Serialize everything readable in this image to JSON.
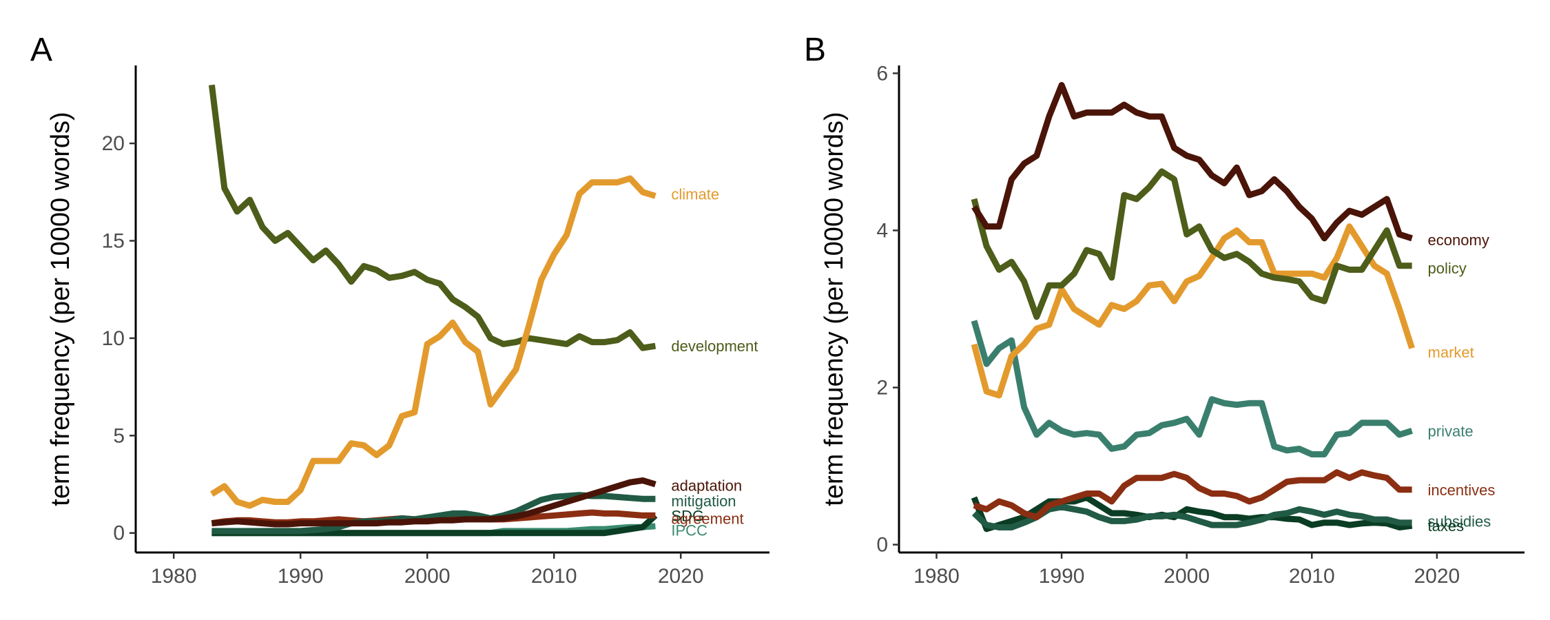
{
  "chart_data": [
    {
      "panel": "A",
      "type": "line",
      "xlabel": "",
      "ylabel": "term frequency (per 10000 words)",
      "xlim": [
        1977,
        2027
      ],
      "ylim": [
        -1,
        24
      ],
      "xticks": [
        1980,
        1990,
        2000,
        2010,
        2020
      ],
      "yticks": [
        0,
        5,
        10,
        15,
        20
      ],
      "x": [
        1983,
        1984,
        1985,
        1986,
        1987,
        1988,
        1989,
        1990,
        1991,
        1992,
        1993,
        1994,
        1995,
        1996,
        1997,
        1998,
        1999,
        2000,
        2001,
        2002,
        2003,
        2004,
        2005,
        2006,
        2007,
        2008,
        2009,
        2010,
        2011,
        2012,
        2013,
        2014,
        2015,
        2016,
        2017,
        2018
      ],
      "series": [
        {
          "name": "IPCC",
          "color": "#3a8a6e",
          "values": [
            0,
            0,
            0,
            0,
            0,
            0,
            0,
            0,
            0,
            0,
            0,
            0,
            0,
            0,
            0,
            0,
            0,
            0,
            0,
            0,
            0,
            0,
            0,
            0.1,
            0.1,
            0.1,
            0.1,
            0.1,
            0.1,
            0.15,
            0.2,
            0.2,
            0.25,
            0.3,
            0.3,
            0.35
          ]
        },
        {
          "name": "SDG",
          "color": "#0b3d24",
          "values": [
            0,
            0,
            0,
            0,
            0,
            0,
            0,
            0,
            0,
            0,
            0,
            0,
            0,
            0,
            0,
            0,
            0,
            0,
            0,
            0,
            0,
            0,
            0,
            0,
            0,
            0,
            0,
            0,
            0,
            0,
            0,
            0,
            0.1,
            0.2,
            0.3,
            0.9
          ]
        },
        {
          "name": "agreement",
          "color": "#8b2e12",
          "values": [
            0.5,
            0.6,
            0.65,
            0.65,
            0.6,
            0.55,
            0.55,
            0.6,
            0.6,
            0.65,
            0.7,
            0.65,
            0.6,
            0.65,
            0.7,
            0.75,
            0.7,
            0.8,
            0.85,
            0.8,
            0.8,
            0.75,
            0.7,
            0.7,
            0.75,
            0.8,
            0.85,
            0.9,
            0.95,
            1.0,
            1.05,
            1.0,
            1.0,
            0.95,
            0.9,
            0.9
          ]
        },
        {
          "name": "mitigation",
          "color": "#215a45",
          "values": [
            0.1,
            0.1,
            0.1,
            0.1,
            0.1,
            0.1,
            0.1,
            0.1,
            0.15,
            0.2,
            0.3,
            0.5,
            0.6,
            0.6,
            0.65,
            0.75,
            0.7,
            0.8,
            0.9,
            1.0,
            1.0,
            0.9,
            0.75,
            0.9,
            1.1,
            1.4,
            1.7,
            1.85,
            1.9,
            1.95,
            1.9,
            1.9,
            1.85,
            1.8,
            1.75,
            1.75
          ]
        },
        {
          "name": "adaptation",
          "color": "#4a1408",
          "values": [
            0.5,
            0.55,
            0.6,
            0.55,
            0.5,
            0.45,
            0.45,
            0.5,
            0.5,
            0.5,
            0.5,
            0.5,
            0.5,
            0.5,
            0.55,
            0.55,
            0.6,
            0.6,
            0.65,
            0.65,
            0.7,
            0.7,
            0.7,
            0.75,
            0.85,
            1.0,
            1.2,
            1.4,
            1.6,
            1.8,
            2.0,
            2.2,
            2.4,
            2.6,
            2.7,
            2.5
          ]
        },
        {
          "name": "development",
          "color": "#4d5d1a",
          "values": [
            23,
            17.7,
            16.5,
            17.1,
            15.7,
            15,
            15.4,
            14.7,
            14,
            14.5,
            13.8,
            12.9,
            13.7,
            13.5,
            13.1,
            13.2,
            13.4,
            13,
            12.8,
            12,
            11.6,
            11.1,
            10,
            9.7,
            9.8,
            10,
            9.9,
            9.8,
            9.7,
            10.1,
            9.8,
            9.8,
            9.9,
            10.3,
            9.5,
            9.6
          ]
        },
        {
          "name": "climate",
          "color": "#e39a2d",
          "values": [
            2,
            2.4,
            1.6,
            1.4,
            1.7,
            1.6,
            1.6,
            2.2,
            3.7,
            3.7,
            3.7,
            4.6,
            4.5,
            4,
            4.5,
            6,
            6.2,
            9.7,
            10.1,
            10.8,
            9.8,
            9.3,
            6.6,
            7.5,
            8.4,
            10.6,
            13,
            14.3,
            15.3,
            17.4,
            18,
            18,
            18,
            18.2,
            17.5,
            17.3
          ]
        }
      ],
      "labels": [
        {
          "text": "climate",
          "color": "#e39a2d",
          "y": 17.4
        },
        {
          "text": "development",
          "color": "#4d5d1a",
          "y": 9.6
        },
        {
          "text": "adaptation",
          "color": "#4a1408",
          "y": 2.45
        },
        {
          "text": "mitigation",
          "color": "#215a45",
          "y": 1.65
        },
        {
          "text": "SDG",
          "color": "#0b3d24",
          "y": 0.9
        },
        {
          "text": "agreement",
          "color": "#8b2e12",
          "y": 0.75
        },
        {
          "text": "IPCC",
          "color": "#3a8a6e",
          "y": 0.15
        }
      ]
    },
    {
      "panel": "B",
      "type": "line",
      "xlabel": "",
      "ylabel": "term frequency (per 10000 words)",
      "xlim": [
        1977,
        2027
      ],
      "ylim": [
        -0.1,
        6.1
      ],
      "xticks": [
        1980,
        1990,
        2000,
        2010,
        2020
      ],
      "yticks": [
        0,
        2,
        4,
        6
      ],
      "x": [
        1983,
        1984,
        1985,
        1986,
        1987,
        1988,
        1989,
        1990,
        1991,
        1992,
        1993,
        1994,
        1995,
        1996,
        1997,
        1998,
        1999,
        2000,
        2001,
        2002,
        2003,
        2004,
        2005,
        2006,
        2007,
        2008,
        2009,
        2010,
        2011,
        2012,
        2013,
        2014,
        2015,
        2016,
        2017,
        2018
      ],
      "series": [
        {
          "name": "taxes",
          "color": "#0b3d24",
          "values": [
            0.6,
            0.2,
            0.25,
            0.3,
            0.35,
            0.45,
            0.55,
            0.55,
            0.55,
            0.6,
            0.5,
            0.4,
            0.4,
            0.38,
            0.35,
            0.38,
            0.35,
            0.45,
            0.42,
            0.4,
            0.35,
            0.35,
            0.33,
            0.35,
            0.35,
            0.33,
            0.32,
            0.25,
            0.28,
            0.28,
            0.25,
            0.27,
            0.28,
            0.27,
            0.22,
            0.24
          ]
        },
        {
          "name": "subsidies",
          "color": "#215a45",
          "values": [
            0.4,
            0.25,
            0.22,
            0.22,
            0.28,
            0.35,
            0.45,
            0.48,
            0.45,
            0.42,
            0.35,
            0.3,
            0.3,
            0.32,
            0.36,
            0.36,
            0.38,
            0.35,
            0.3,
            0.25,
            0.25,
            0.25,
            0.28,
            0.32,
            0.38,
            0.4,
            0.45,
            0.42,
            0.38,
            0.42,
            0.38,
            0.36,
            0.32,
            0.32,
            0.28,
            0.28
          ]
        },
        {
          "name": "incentives",
          "color": "#8b2e12",
          "values": [
            0.5,
            0.45,
            0.55,
            0.5,
            0.4,
            0.35,
            0.5,
            0.55,
            0.6,
            0.65,
            0.65,
            0.55,
            0.75,
            0.85,
            0.85,
            0.85,
            0.9,
            0.85,
            0.72,
            0.65,
            0.65,
            0.62,
            0.55,
            0.6,
            0.7,
            0.8,
            0.82,
            0.82,
            0.82,
            0.92,
            0.85,
            0.92,
            0.88,
            0.85,
            0.7,
            0.7
          ]
        },
        {
          "name": "private",
          "color": "#3a7f6e",
          "values": [
            2.85,
            2.3,
            2.5,
            2.6,
            1.75,
            1.4,
            1.55,
            1.45,
            1.4,
            1.42,
            1.4,
            1.22,
            1.25,
            1.4,
            1.42,
            1.52,
            1.55,
            1.6,
            1.4,
            1.85,
            1.8,
            1.78,
            1.8,
            1.8,
            1.25,
            1.2,
            1.22,
            1.15,
            1.15,
            1.4,
            1.42,
            1.55,
            1.55,
            1.55,
            1.4,
            1.45
          ]
        },
        {
          "name": "market",
          "color": "#e39a2d",
          "values": [
            2.55,
            1.95,
            1.9,
            2.4,
            2.55,
            2.75,
            2.8,
            3.25,
            3,
            2.9,
            2.8,
            3.05,
            3,
            3.1,
            3.3,
            3.32,
            3.1,
            3.35,
            3.42,
            3.65,
            3.9,
            4,
            3.85,
            3.85,
            3.45,
            3.45,
            3.45,
            3.45,
            3.4,
            3.65,
            4.05,
            3.8,
            3.55,
            3.45,
            3,
            2.5
          ]
        },
        {
          "name": "policy",
          "color": "#4d5d1a",
          "values": [
            4.4,
            3.8,
            3.5,
            3.6,
            3.35,
            2.9,
            3.3,
            3.3,
            3.45,
            3.75,
            3.7,
            3.4,
            4.45,
            4.4,
            4.55,
            4.75,
            4.65,
            3.95,
            4.05,
            3.75,
            3.65,
            3.7,
            3.6,
            3.45,
            3.4,
            3.38,
            3.35,
            3.15,
            3.1,
            3.55,
            3.5,
            3.5,
            3.75,
            4.0,
            3.55,
            3.55
          ]
        },
        {
          "name": "economy",
          "color": "#4a1408",
          "values": [
            4.3,
            4.05,
            4.05,
            4.65,
            4.85,
            4.95,
            5.45,
            5.85,
            5.45,
            5.5,
            5.5,
            5.5,
            5.6,
            5.5,
            5.45,
            5.45,
            5.05,
            4.95,
            4.9,
            4.7,
            4.6,
            4.8,
            4.45,
            4.5,
            4.65,
            4.5,
            4.3,
            4.15,
            3.9,
            4.1,
            4.25,
            4.2,
            4.3,
            4.4,
            3.95,
            3.9
          ]
        }
      ],
      "labels": [
        {
          "text": "economy",
          "color": "#4a1408",
          "y": 3.88
        },
        {
          "text": "policy",
          "color": "#4d5d1a",
          "y": 3.52
        },
        {
          "text": "market",
          "color": "#e39a2d",
          "y": 2.45
        },
        {
          "text": "private",
          "color": "#3a7f6e",
          "y": 1.45
        },
        {
          "text": "incentives",
          "color": "#8b2e12",
          "y": 0.7
        },
        {
          "text": "subsidies",
          "color": "#215a45",
          "y": 0.3
        },
        {
          "text": "taxes",
          "color": "#0b3d24",
          "y": 0.24
        }
      ]
    }
  ],
  "panels": [
    "A",
    "B"
  ]
}
